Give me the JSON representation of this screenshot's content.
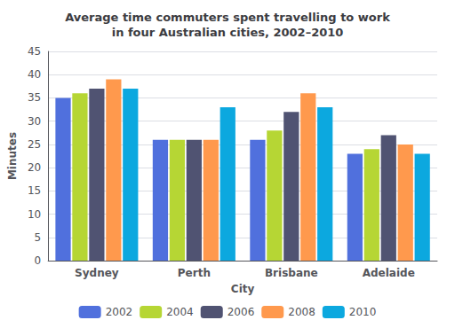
{
  "chart_data": {
    "type": "bar",
    "title": "Average time commuters spent travelling to work\nin four Australian cities, 2002–2010",
    "xlabel": "City",
    "ylabel": "Minutes",
    "categories": [
      "Sydney",
      "Perth",
      "Brisbane",
      "Adelaide"
    ],
    "series": [
      {
        "name": "2002",
        "values": [
          35,
          26,
          26,
          23
        ]
      },
      {
        "name": "2004",
        "values": [
          36,
          26,
          28,
          24
        ]
      },
      {
        "name": "2006",
        "values": [
          37,
          26,
          32,
          27
        ]
      },
      {
        "name": "2008",
        "values": [
          39,
          26,
          36,
          25
        ]
      },
      {
        "name": "2010",
        "values": [
          37,
          33,
          33,
          23
        ]
      }
    ],
    "ylim": [
      0,
      45
    ],
    "yticks": [
      0,
      5,
      10,
      15,
      20,
      25,
      30,
      35,
      40,
      45
    ],
    "grid": true,
    "legend": "bottom"
  }
}
